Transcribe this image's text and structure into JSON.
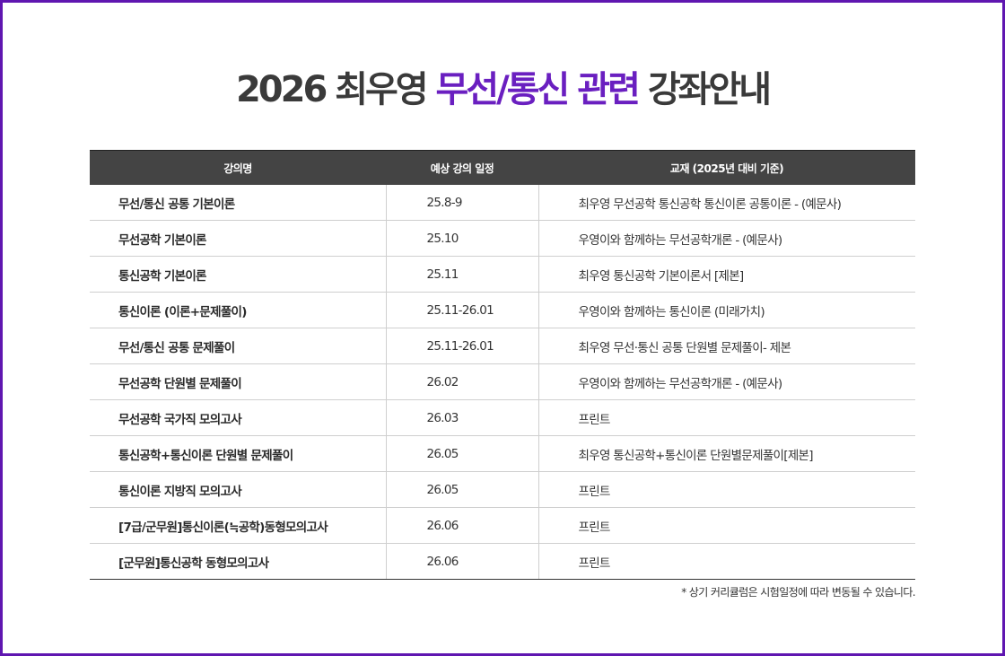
{
  "title": {
    "part1": "2026 최우영",
    "highlight": "무선/통신 관련",
    "part2": "강좌안내"
  },
  "table": {
    "headers": [
      "강의명",
      "예상 강의 일정",
      "교재 (2025년 대비 기준)"
    ],
    "rows": [
      [
        "무선/통신 공통 기본이론",
        "25.8-9",
        "최우영 무선공학 통신공학 통신이론 공통이론 - (예문사)"
      ],
      [
        "무선공학 기본이론",
        "25.10",
        "우영이와 함께하는 무선공학개론 - (예문사)"
      ],
      [
        "통신공학 기본이론",
        "25.11",
        "최우영 통신공학 기본이론서 [제본]"
      ],
      [
        "통신이론 (이론+문제풀이)",
        "25.11-26.01",
        "우영이와 함께하는 통신이론 (미래가치)"
      ],
      [
        "무선/통신 공통 문제풀이",
        "25.11-26.01",
        "최우영 무선·통신 공통 단원별 문제풀이- 제본"
      ],
      [
        "무선공학 단원별 문제풀이",
        "26.02",
        "우영이와 함께하는 무선공학개론 - (예문사)"
      ],
      [
        "무선공학 국가직 모의고사",
        "26.03",
        "프린트"
      ],
      [
        "통신공학+통신이론 단원별 문제풀이",
        "26.05",
        "최우영 통신공학+통신이론 단원별문제풀이[제본]"
      ],
      [
        "통신이론 지방직 모의고사",
        "26.05",
        "프린트"
      ],
      [
        "[7급/군무원]통신이론(≒공학)동형모의고사",
        "26.06",
        "프린트"
      ],
      [
        "[군무원]통신공학 동형모의고사",
        "26.06",
        "프린트"
      ]
    ]
  },
  "note": "* 상기 커리큘럼은 시험일정에 따라 변동될 수 있습니다.",
  "colors": {
    "frame": "#5f16b0",
    "highlight": "#6a1fc0",
    "header_bg": "#444444"
  }
}
